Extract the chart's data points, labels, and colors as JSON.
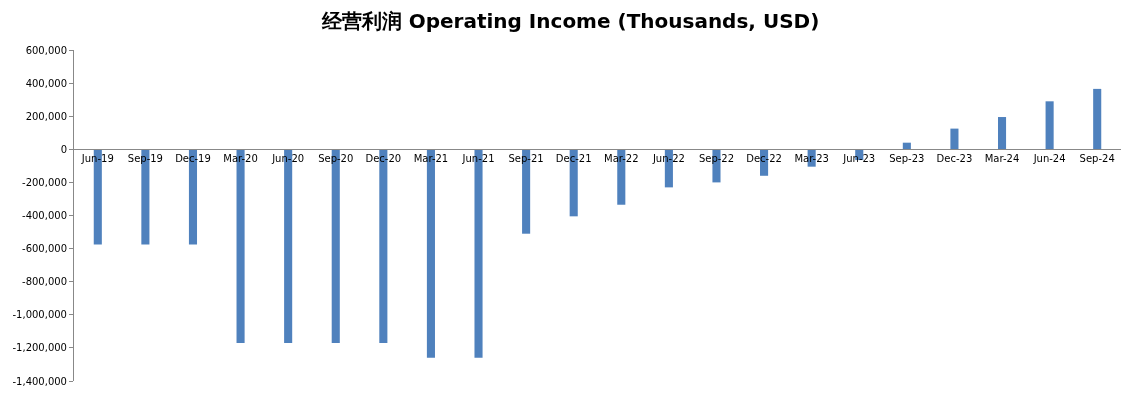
{
  "chart_data": {
    "type": "bar",
    "title": "经营利润 Operating Income (Thousands, USD)",
    "categories": [
      "Jun-19",
      "Sep-19",
      "Dec-19",
      "Mar-20",
      "Jun-20",
      "Sep-20",
      "Dec-20",
      "Mar-21",
      "Jun-21",
      "Sep-21",
      "Dec-21",
      "Mar-22",
      "Jun-22",
      "Sep-22",
      "Dec-22",
      "Mar-23",
      "Jun-23",
      "Sep-23",
      "Dec-23",
      "Mar-24",
      "Jun-24",
      "Sep-24"
    ],
    "values": [
      -575000,
      -575000,
      -575000,
      -1170000,
      -1170000,
      -1170000,
      -1170000,
      -1260000,
      -1260000,
      -510000,
      -405000,
      -335000,
      -230000,
      -200000,
      -160000,
      -105000,
      -65000,
      40000,
      125000,
      195000,
      290000,
      365000
    ],
    "color": "#4f81bd",
    "ylim": [
      -1400000,
      600000
    ],
    "yticks": [
      {
        "value": -1400000,
        "label": "-1,400,000"
      },
      {
        "value": -1200000,
        "label": "-1,200,000"
      },
      {
        "value": -1000000,
        "label": "-1,000,000"
      },
      {
        "value": -800000,
        "label": "-800,000"
      },
      {
        "value": -600000,
        "label": "-600,000"
      },
      {
        "value": -400000,
        "label": "-400,000"
      },
      {
        "value": -200000,
        "label": "-200,000"
      },
      0,
      {
        "value": 200000,
        "label": "200,000"
      },
      {
        "value": 400000,
        "label": "400,000"
      },
      {
        "value": 600000,
        "label": "600,000"
      }
    ],
    "grid": false,
    "legend": false
  }
}
